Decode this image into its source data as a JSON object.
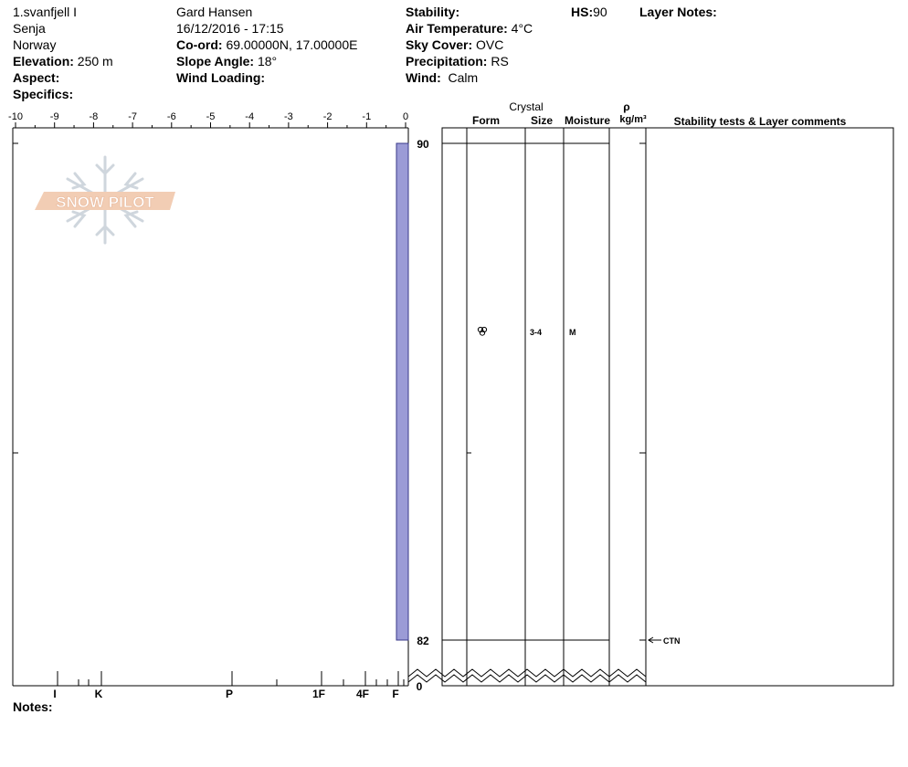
{
  "header": {
    "col1": {
      "location": "1.svanfjell I",
      "area": "Senja",
      "country": "Norway",
      "elevation_label": "Elevation:",
      "elevation_value": "250 m",
      "aspect_label": "Aspect:",
      "aspect_value": "",
      "specifics_label": "Specifics:",
      "specifics_value": ""
    },
    "col2": {
      "observer": "Gard Hansen",
      "datetime": "16/12/2016 - 17:15",
      "coord_label": "Co-ord:",
      "coord_value": "69.00000N, 17.00000E",
      "slope_label": "Slope Angle:",
      "slope_value": "18°",
      "wind_loading_label": "Wind Loading:",
      "wind_loading_value": ""
    },
    "col3": {
      "stability_label": "Stability:",
      "stability_value": "",
      "air_temp_label": "Air Temperature:",
      "air_temp_value": "4°C",
      "sky_label": "Sky Cover:",
      "sky_value": "OVC",
      "precip_label": "Precipitation:",
      "precip_value": "RS",
      "wind_label": "Wind:",
      "wind_value": "Calm"
    },
    "hs_label": "HS:",
    "hs_value": "90",
    "layer_notes_label": "Layer Notes:",
    "notes_label": "Notes:"
  },
  "table_headers": {
    "crystal": "Crystal",
    "form": "Form",
    "size": "Size",
    "moisture": "Moisture",
    "rho": "ρ",
    "density_unit": "kg/m³",
    "comments": "Stability tests & Layer comments"
  },
  "chart_data": {
    "type": "bar",
    "title": "",
    "temperature_axis": {
      "ticks": [
        -10,
        -9,
        -8,
        -7,
        -6,
        -5,
        -4,
        -3,
        -2,
        -1,
        0
      ],
      "tick_labels": [
        "-10",
        "-9",
        "-8",
        "-7",
        "-6",
        "-5",
        "-4",
        "-3",
        "-2",
        "-1",
        "0"
      ],
      "range": [
        -10,
        0
      ]
    },
    "hardness_axis": {
      "labels": [
        "I",
        "K",
        "P",
        "1F",
        "4F",
        "F"
      ]
    },
    "depth_axis": {
      "max": 90,
      "labels": [
        "90",
        "82",
        "0"
      ]
    },
    "layers": [
      {
        "top": 90,
        "bottom": 82,
        "hardness": "F",
        "grain_form_icon": "melt-form-icon",
        "size": "3-4",
        "moisture": "M",
        "density": ""
      }
    ],
    "stability_tests": [
      {
        "depth": 82,
        "label": "CTN"
      }
    ],
    "colors": {
      "layer_fill": "#9b9bd6",
      "layer_stroke": "#3a3a8a",
      "logo": "#f2cdb4",
      "snowflake": "#cfd6dd"
    }
  },
  "logo": {
    "text": "SNOW PILOT"
  }
}
